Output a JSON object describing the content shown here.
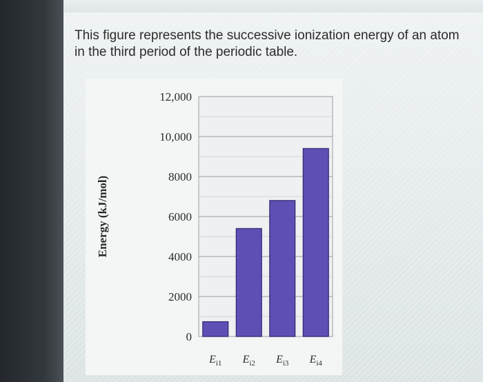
{
  "question": {
    "text": "This figure represents the successive ionization energy of an atom in the third period of the periodic table."
  },
  "chart_data": {
    "type": "bar",
    "categories": [
      "E_i1",
      "E_i2",
      "E_i3",
      "E_i4"
    ],
    "category_labels": [
      {
        "main": "E",
        "sub": "i1"
      },
      {
        "main": "E",
        "sub": "i2"
      },
      {
        "main": "E",
        "sub": "i3"
      },
      {
        "main": "E",
        "sub": "i4"
      }
    ],
    "values": [
      740,
      5400,
      6800,
      9400
    ],
    "ylabel": "Energy (kJ/mol)",
    "ylim": [
      0,
      12000
    ],
    "yticks": [
      0,
      2000,
      4000,
      6000,
      8000,
      10000,
      12000
    ],
    "ytick_labels": [
      "0",
      "2000",
      "4000",
      "6000",
      "8000",
      "10,000",
      "12,000"
    ],
    "grid": true,
    "bar_color": "#5d4fb3",
    "bar_edge_color": "#2f2670"
  }
}
